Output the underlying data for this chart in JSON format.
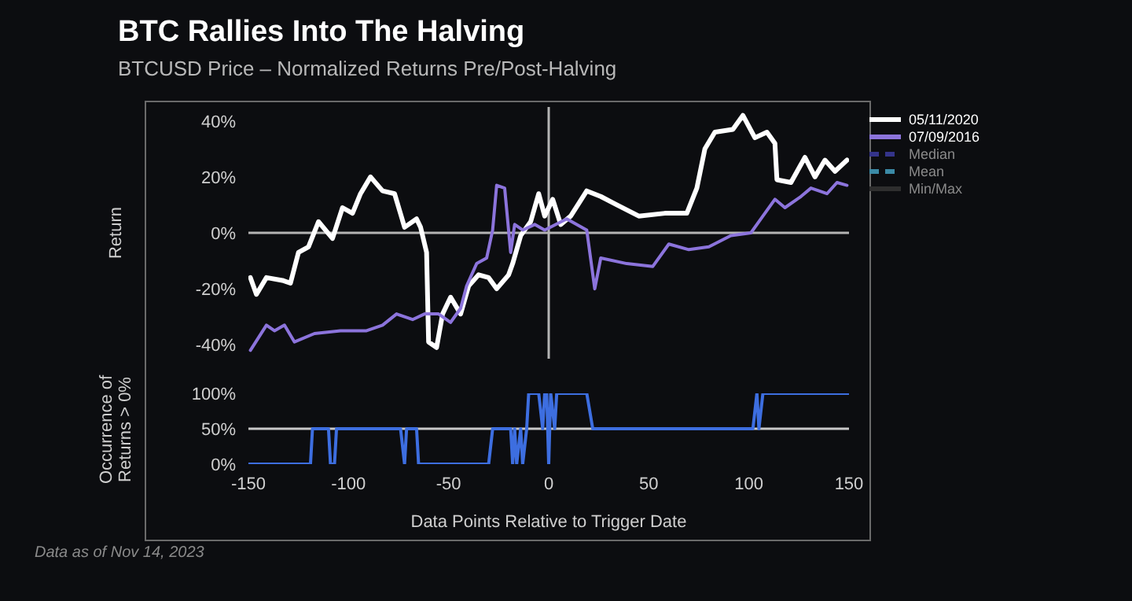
{
  "chart_data": [
    {
      "type": "line",
      "title": "BTC Rallies Into The Halving",
      "subtitle": "BTCUSD Price – Normalized Returns Pre/Post-Halving",
      "ylabel": "Return",
      "xlim": [
        -150,
        150
      ],
      "ylim": [
        -45,
        45
      ],
      "yticks": [
        {
          "value": -40,
          "label": "-40%"
        },
        {
          "value": -20,
          "label": "-20%"
        },
        {
          "value": 0,
          "label": "0%"
        },
        {
          "value": 20,
          "label": "20%"
        },
        {
          "value": 40,
          "label": "40%"
        }
      ],
      "tick_labels": "y",
      "grid": false,
      "legend": "top right",
      "ref_lines": [
        {
          "axis": "y",
          "value": 0,
          "color": "#b4b4b4"
        },
        {
          "axis": "x",
          "value": 0,
          "color": "#b4b4b4"
        }
      ],
      "series": [
        {
          "name": "05/11/2020",
          "color": "#ffffff",
          "line_style": "solid",
          "x": [
            -149,
            -146,
            -141,
            -133,
            -129,
            -125,
            -120,
            -115,
            -108,
            -103,
            -98,
            -94,
            -89,
            -83,
            -77,
            -72,
            -66,
            -64,
            -61,
            -60,
            -56,
            -53,
            -49,
            -44,
            -40,
            -35,
            -30,
            -26,
            -20,
            -18,
            -14,
            -9,
            -5,
            -2,
            2,
            6,
            11,
            19,
            26,
            34,
            45,
            58,
            69,
            74,
            78,
            83,
            92,
            97,
            103,
            109,
            113,
            114,
            121,
            128,
            133,
            138,
            143,
            149
          ],
          "values": [
            -16,
            -22,
            -16,
            -17,
            -18,
            -7,
            -5,
            4,
            -2,
            9,
            7,
            14,
            20,
            15,
            14,
            2,
            5,
            2,
            -7,
            -39,
            -41,
            -29,
            -23,
            -29,
            -19,
            -15,
            -16,
            -20,
            -15,
            -11,
            -1,
            4,
            14,
            6,
            12,
            3,
            6,
            15,
            13,
            10,
            6,
            7,
            7,
            16,
            30,
            36,
            37,
            42,
            34,
            36,
            32,
            19,
            18,
            27,
            20,
            26,
            22,
            26
          ]
        },
        {
          "name": "07/09/2016",
          "color": "#8c74dc",
          "line_style": "solid",
          "x": [
            -149,
            -141,
            -137,
            -132,
            -127,
            -117,
            -104,
            -91,
            -83,
            -76,
            -68,
            -62,
            -55,
            -49,
            -44,
            -41,
            -36,
            -31,
            -28,
            -26,
            -22,
            -19,
            -17,
            -13,
            -7,
            -2,
            9,
            19,
            23,
            26,
            39,
            52,
            60,
            70,
            80,
            91,
            101,
            107,
            113,
            118,
            126,
            131,
            139,
            144,
            149
          ],
          "values": [
            -42,
            -33,
            -35,
            -33,
            -39,
            -36,
            -35,
            -35,
            -33,
            -29,
            -31,
            -29,
            -29,
            -32,
            -27,
            -19,
            -11,
            -9,
            1,
            17,
            16,
            -7,
            3,
            1,
            3,
            1,
            5,
            1,
            -20,
            -9,
            -11,
            -12,
            -4,
            -6,
            -5,
            -1,
            0,
            6,
            12,
            9,
            13,
            16,
            14,
            18,
            17
          ]
        },
        {
          "name": "Median",
          "color": "#34348a",
          "line_style": "dashed"
        },
        {
          "name": "Mean",
          "color": "#3b8aa6",
          "line_style": "dashed"
        },
        {
          "name": "Min/Max",
          "color": "#2e2e2e",
          "line_style": "solid"
        }
      ]
    },
    {
      "type": "line",
      "xlabel": "Data Points Relative to Trigger Date",
      "ylabel": "Occurrence of\nReturns > 0%",
      "xlim": [
        -150,
        150
      ],
      "xticks": [
        -150,
        -100,
        -50,
        0,
        50,
        100,
        150
      ],
      "ylim": [
        0,
        100
      ],
      "yticks": [
        {
          "value": 0,
          "label": "0%"
        },
        {
          "value": 50,
          "label": "50%"
        },
        {
          "value": 100,
          "label": "100%"
        }
      ],
      "grid": false,
      "legend": false,
      "ref_lines": [
        {
          "axis": "y",
          "value": 50,
          "color": "#c8c8c8"
        }
      ],
      "annotations": [
        "Data as of Nov 14, 2023"
      ],
      "series": [
        {
          "color": "#3d6ee0",
          "line_style": "solid",
          "x": [
            -150,
            -119,
            -118,
            -110,
            -109,
            -107,
            -106,
            -74,
            -72,
            -71,
            -66,
            -65,
            -30,
            -28,
            -19,
            -18,
            -17,
            -16,
            -14,
            -13,
            -11,
            -10,
            -5,
            -3,
            -2,
            -1,
            0,
            1,
            3,
            4,
            19,
            22,
            102,
            104,
            105,
            107,
            150
          ],
          "values": [
            0,
            0,
            50,
            50,
            0,
            0,
            50,
            50,
            0,
            50,
            50,
            0,
            0,
            50,
            50,
            0,
            50,
            0,
            50,
            0,
            50,
            100,
            100,
            50,
            100,
            100,
            0,
            100,
            50,
            100,
            100,
            50,
            50,
            100,
            50,
            100,
            100
          ]
        }
      ]
    }
  ]
}
